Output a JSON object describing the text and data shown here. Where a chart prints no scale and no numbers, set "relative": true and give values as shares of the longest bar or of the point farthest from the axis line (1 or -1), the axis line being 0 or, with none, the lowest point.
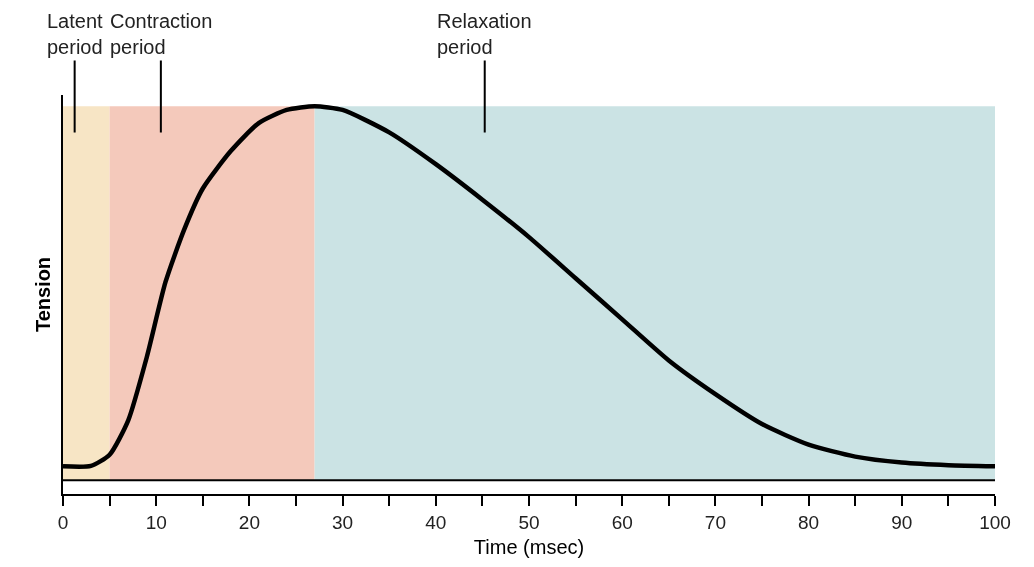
{
  "chart_data": {
    "type": "line",
    "relative": true,
    "xlabel": "Time (msec)",
    "ylabel": "Tension",
    "x": [
      0,
      3,
      5,
      7,
      9,
      11,
      13,
      15,
      18,
      21,
      24,
      27,
      30,
      35,
      40,
      45,
      50,
      55,
      60,
      65,
      70,
      75,
      80,
      85,
      90,
      95,
      100
    ],
    "series": [
      {
        "color": "#000000",
        "values": [
          0.037,
          0.038,
          0.068,
          0.16,
          0.33,
          0.53,
          0.67,
          0.78,
          0.88,
          0.955,
          0.99,
          1.0,
          0.99,
          0.93,
          0.845,
          0.75,
          0.65,
          0.54,
          0.43,
          0.32,
          0.23,
          0.15,
          0.095,
          0.063,
          0.047,
          0.04,
          0.037
        ]
      }
    ],
    "xlim": [
      0,
      100
    ],
    "xticks": [
      0,
      10,
      20,
      30,
      40,
      50,
      60,
      70,
      80,
      90,
      100
    ],
    "bands": [
      {
        "axis": "x",
        "from": 0,
        "to": 5,
        "color": "#f7e5c5",
        "label": "Latent\nperiod"
      },
      {
        "axis": "x",
        "from": 5,
        "to": 27,
        "color": "#f4c9bb",
        "label": "Contraction\nperiod"
      },
      {
        "axis": "x",
        "from": 27,
        "to": 100,
        "color": "#cbe3e4",
        "label": "Relaxation\nperiod"
      }
    ],
    "grid": false,
    "marker": "none",
    "line_style": "solid"
  }
}
